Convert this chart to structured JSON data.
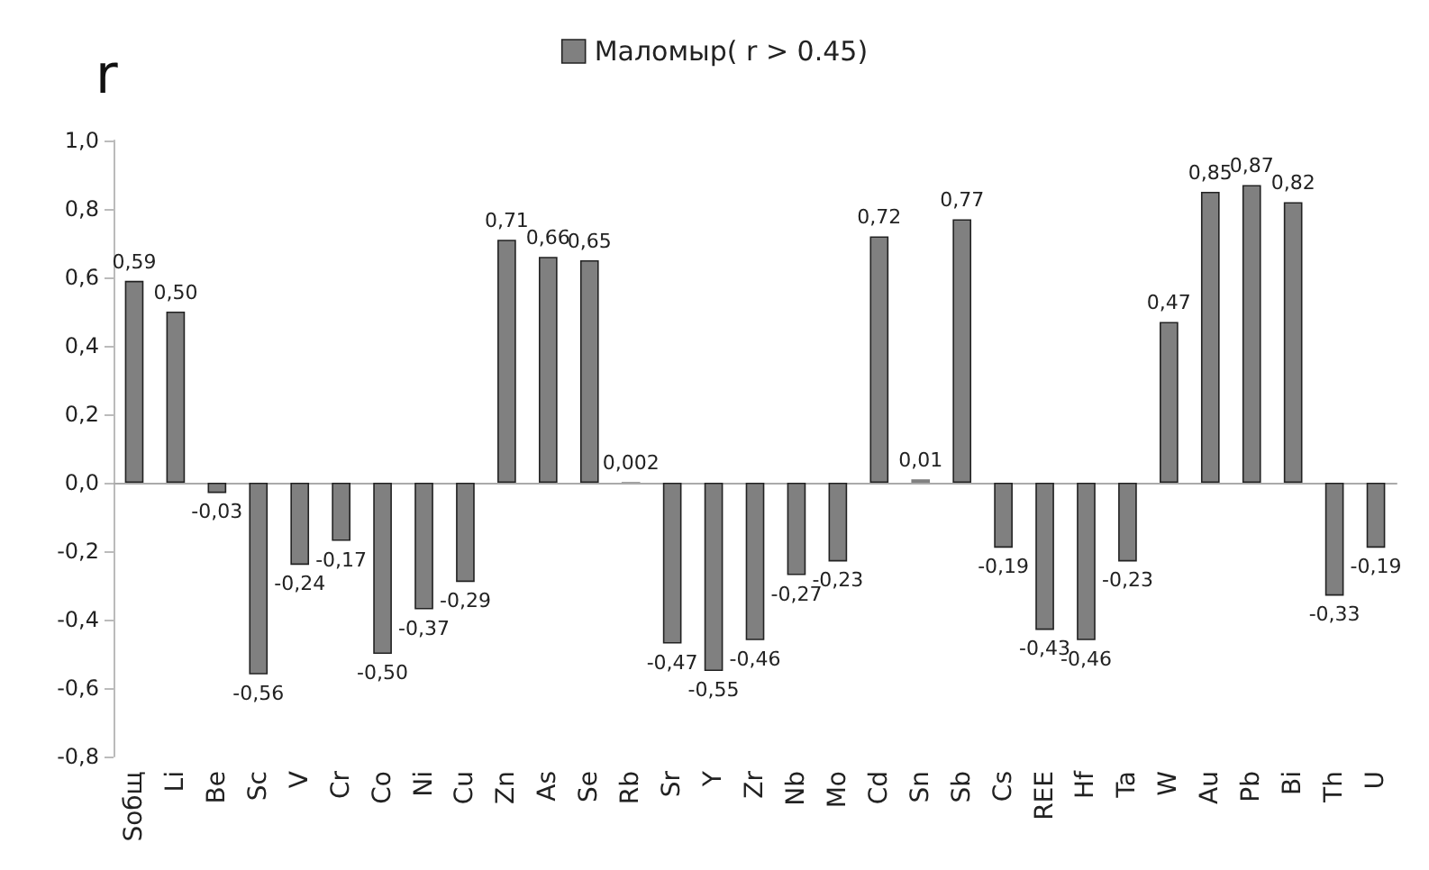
{
  "chart_data": {
    "type": "bar",
    "ylabel": "r",
    "legend": "top",
    "categories": [
      "Sобщ",
      "Li",
      "Be",
      "Sc",
      "V",
      "Cr",
      "Co",
      "Ni",
      "Cu",
      "Zn",
      "As",
      "Se",
      "Rb",
      "Sr",
      "Y",
      "Zr",
      "Nb",
      "Mo",
      "Cd",
      "Sn",
      "Sb",
      "Cs",
      "REE",
      "Hf",
      "Ta",
      "W",
      "Au",
      "Pb",
      "Bi",
      "Th",
      "U"
    ],
    "series": [
      {
        "name": "Маломыр( r > 0.45)",
        "color": "#808080",
        "values": [
          0.59,
          0.5,
          -0.03,
          -0.56,
          -0.24,
          -0.17,
          -0.5,
          -0.37,
          -0.29,
          0.71,
          0.66,
          0.65,
          0.002,
          -0.47,
          -0.55,
          -0.46,
          -0.27,
          -0.23,
          0.72,
          0.01,
          0.77,
          -0.19,
          -0.43,
          -0.46,
          -0.23,
          0.47,
          0.85,
          0.87,
          0.82,
          -0.33,
          -0.19
        ],
        "value_labels": [
          "0,59",
          "0,50",
          "-0,03",
          "-0,56",
          "-0,24",
          "-0,17",
          "-0,50",
          "-0,37",
          "-0,29",
          "0,71",
          "0,66",
          "0,65",
          "0,002",
          "-0,47",
          "-0,55",
          "-0,46",
          "-0,27",
          "-0,23",
          "0,72",
          "0,01",
          "0,77",
          "-0,19",
          "-0,43",
          "-0,46",
          "-0,23",
          "0,47",
          "0,85",
          "0,87",
          "0,82",
          "-0,33",
          "-0,19"
        ]
      }
    ],
    "ylim": [
      -0.8,
      1.0
    ],
    "yticks": [
      {
        "value": -0.8,
        "label": "-0,8"
      },
      {
        "value": -0.6,
        "label": "-0,6"
      },
      {
        "value": -0.4,
        "label": "-0,4"
      },
      {
        "value": -0.2,
        "label": "-0,2"
      },
      {
        "value": 0,
        "label": "0,0"
      },
      {
        "value": 0.2,
        "label": "0,2"
      },
      {
        "value": 0.4,
        "label": "0,4"
      },
      {
        "value": 0.6,
        "label": "0,6"
      },
      {
        "value": 0.8,
        "label": "0,8"
      },
      {
        "value": 1.0,
        "label": "1,0"
      }
    ]
  }
}
